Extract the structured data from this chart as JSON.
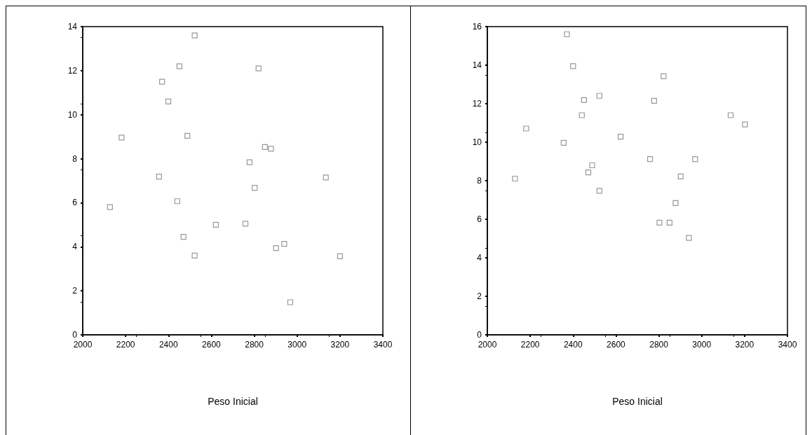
{
  "chart_data": [
    {
      "type": "scatter",
      "xlabel": "Peso Inicial",
      "marker": "square",
      "color": "#808080",
      "x": [
        2127,
        2181,
        2356,
        2370,
        2399,
        2441,
        2451,
        2470,
        2488,
        2522,
        2522,
        2621,
        2759,
        2778,
        2802,
        2820,
        2850,
        2878,
        2902,
        2940,
        2968,
        3134,
        3200
      ],
      "values": [
        5.8,
        8.96,
        7.19,
        11.5,
        10.6,
        6.07,
        12.2,
        4.45,
        9.04,
        13.6,
        3.6,
        5.0,
        5.05,
        7.84,
        6.68,
        12.1,
        8.53,
        8.45,
        3.94,
        4.13,
        1.48,
        7.15,
        3.57
      ],
      "xlim": [
        2000,
        3400
      ],
      "xticks": [
        2000,
        2200,
        2400,
        2600,
        2800,
        3000,
        3200,
        3400
      ],
      "ylim": [
        0,
        14
      ],
      "yticks": [
        0,
        2,
        4,
        6,
        8,
        10,
        12,
        14
      ]
    },
    {
      "type": "scatter",
      "xlabel": "Peso Inicial",
      "marker": "square",
      "color": "#808080",
      "x": [
        2129,
        2181,
        2356,
        2371,
        2400,
        2441,
        2451,
        2471,
        2489,
        2523,
        2523,
        2622,
        2759,
        2778,
        2803,
        2822,
        2850,
        2878,
        2902,
        2940,
        2969,
        3135,
        3202
      ],
      "values": [
        8.11,
        10.71,
        9.97,
        15.6,
        13.95,
        11.4,
        12.19,
        8.43,
        8.8,
        12.41,
        7.48,
        10.29,
        9.12,
        12.15,
        5.82,
        13.42,
        5.82,
        6.84,
        8.22,
        5.03,
        9.12,
        11.4,
        10.92
      ],
      "xlim": [
        2000,
        3400
      ],
      "xticks": [
        2000,
        2200,
        2400,
        2600,
        2800,
        3000,
        3200,
        3400
      ],
      "ylim": [
        0,
        16
      ],
      "yticks": [
        0,
        2,
        4,
        6,
        8,
        10,
        12,
        14,
        16
      ]
    }
  ]
}
